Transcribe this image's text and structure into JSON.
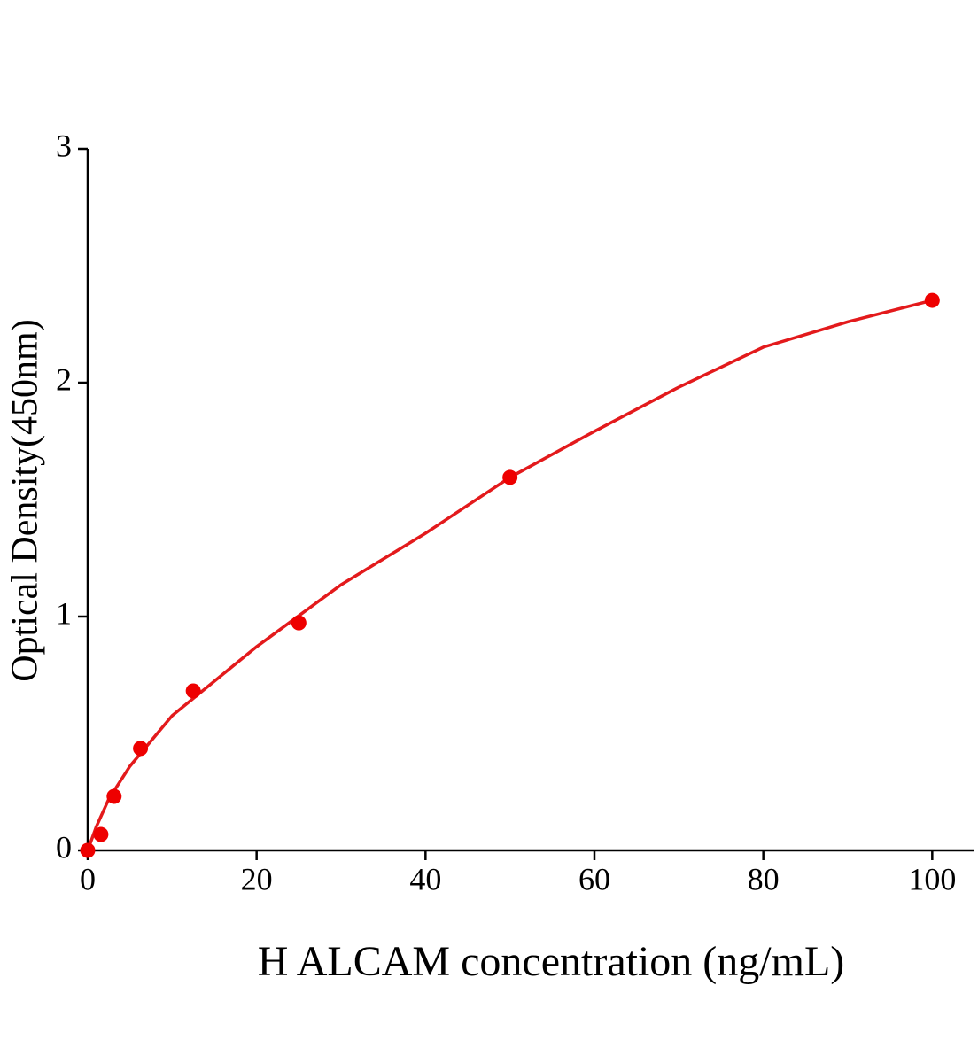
{
  "chart_data": {
    "type": "scatter",
    "x_label": "H ALCAM concentration (ng/mL)",
    "y_label": "Optical Density(450nm)",
    "x": [
      0,
      1.5625,
      3.125,
      6.25,
      12.5,
      25,
      50,
      100
    ],
    "values": [
      0,
      0.068,
      0.231,
      0.436,
      0.682,
      0.973,
      1.595,
      2.352
    ],
    "color": "#ee0000",
    "fit": {
      "x": [
        0,
        1,
        2.5,
        5,
        10,
        20,
        30,
        40,
        50,
        60,
        70,
        80,
        90,
        100
      ],
      "values": [
        0,
        0.1,
        0.22,
        0.36,
        0.576,
        0.871,
        1.136,
        1.356,
        1.595,
        1.792,
        1.981,
        2.152,
        2.26,
        2.352
      ],
      "color": "#e31a1c"
    },
    "xlim": [
      0,
      105
    ],
    "xticks": [
      0,
      20,
      40,
      60,
      80,
      100
    ],
    "ylim": [
      0,
      3
    ],
    "yticks": [
      0,
      1,
      2,
      3
    ]
  }
}
